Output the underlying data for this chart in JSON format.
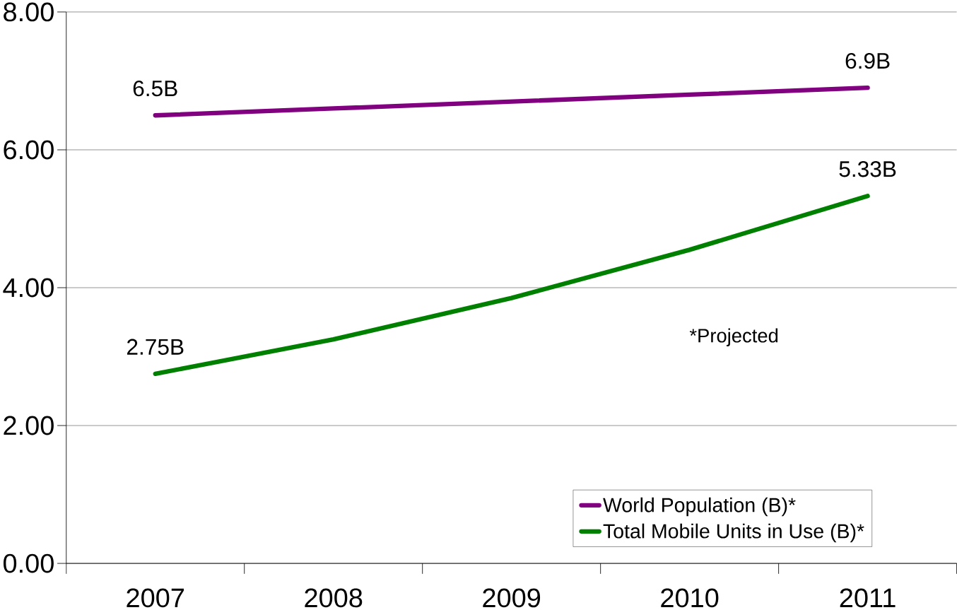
{
  "chart_data": {
    "type": "line",
    "categories": [
      "2007",
      "2008",
      "2009",
      "2010",
      "2011"
    ],
    "series": [
      {
        "name": "World Population (B)*",
        "color": "#800080",
        "values": [
          6.5,
          6.6,
          6.7,
          6.8,
          6.9
        ],
        "value_labels": [
          "6.5B",
          null,
          null,
          null,
          "6.9B"
        ]
      },
      {
        "name": "Total Mobile Units in Use (B)*",
        "color": "#008000",
        "values": [
          2.75,
          3.25,
          3.85,
          4.55,
          5.33
        ],
        "value_labels": [
          "2.75B",
          null,
          null,
          null,
          "5.33B"
        ]
      }
    ],
    "ylim": [
      0,
      8
    ],
    "yticks": [
      {
        "value": 0,
        "label": "0.00"
      },
      {
        "value": 2,
        "label": "2.00"
      },
      {
        "value": 4,
        "label": "4.00"
      },
      {
        "value": 6,
        "label": "6.00"
      },
      {
        "value": 8,
        "label": "8.00"
      }
    ],
    "grid": "y",
    "legend": "bottom right",
    "marker": "none",
    "line_style": "solid",
    "annotations": [
      "*Projected"
    ]
  }
}
